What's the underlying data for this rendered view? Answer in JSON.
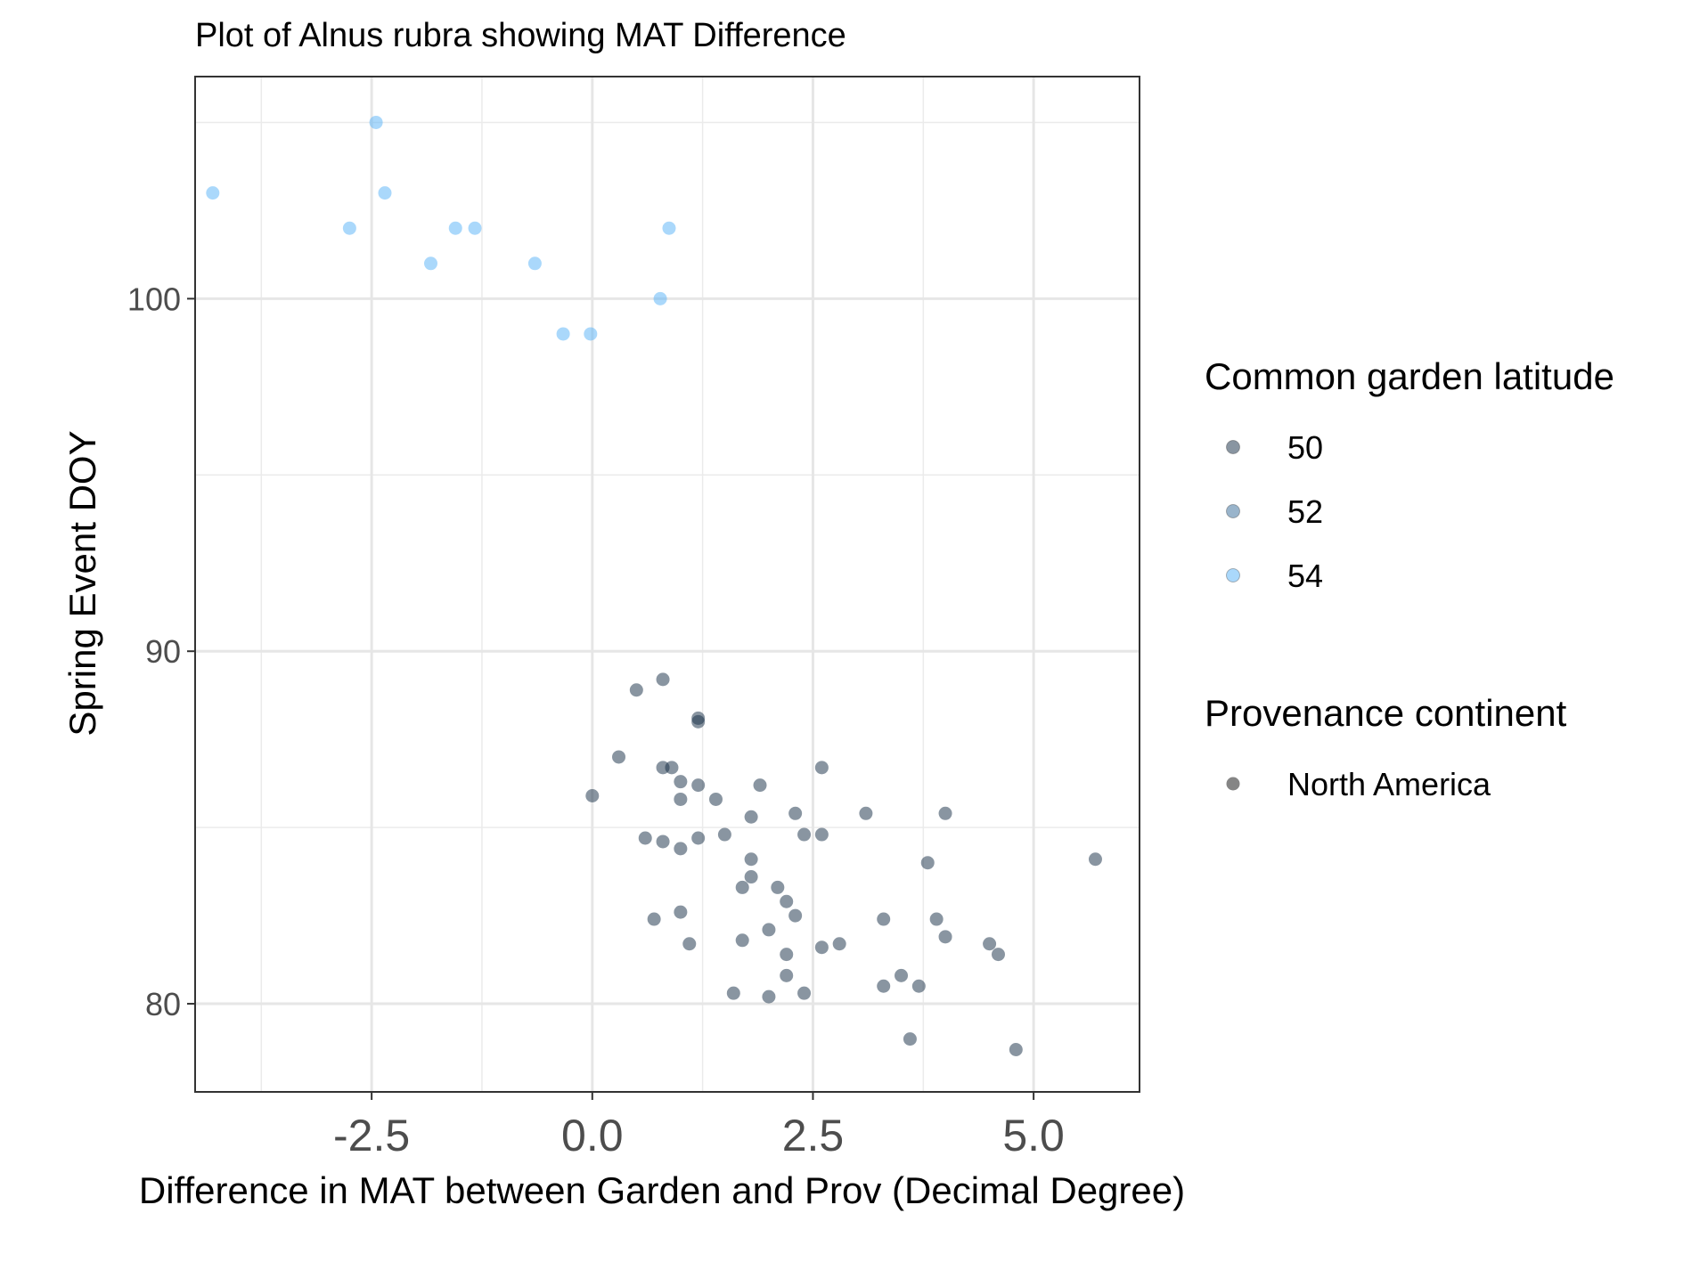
{
  "chart_data": {
    "type": "scatter",
    "title": "Plot of Alnus rubra showing MAT Difference",
    "xlabel": "Difference in MAT between Garden and Prov (Decimal Degree)",
    "ylabel": "Spring Event DOY",
    "xlim": [
      -4.5,
      6.2
    ],
    "ylim": [
      77.5,
      106.3
    ],
    "x_ticks": [
      -2.5,
      0.0,
      2.5,
      5.0
    ],
    "x_tick_labels": [
      "-2.5",
      "0.0",
      "2.5",
      "5.0"
    ],
    "y_ticks": [
      80,
      90,
      100
    ],
    "y_tick_labels": [
      "80",
      "90",
      "100"
    ],
    "grid": true,
    "legend_position": "right",
    "legend": {
      "color_title": "Common garden latitude",
      "color_entries": [
        {
          "label": "50",
          "color": "#132b43"
        },
        {
          "label": "52",
          "color": "#336a98"
        },
        {
          "label": "54",
          "color": "#56b1f7"
        }
      ],
      "shape_title": "Provenance continent",
      "shape_entries": [
        {
          "label": "North America",
          "color": "#333333"
        }
      ]
    },
    "series": [
      {
        "latitude": 54,
        "color": "#56b1f7",
        "points": [
          {
            "x": -4.3,
            "y": 103
          },
          {
            "x": -2.45,
            "y": 105
          },
          {
            "x": -2.35,
            "y": 103
          },
          {
            "x": -2.75,
            "y": 102
          },
          {
            "x": -1.55,
            "y": 102
          },
          {
            "x": -1.33,
            "y": 102
          },
          {
            "x": -1.83,
            "y": 101
          },
          {
            "x": -0.65,
            "y": 101
          },
          {
            "x": 0.87,
            "y": 102
          },
          {
            "x": 0.77,
            "y": 100
          },
          {
            "x": -0.33,
            "y": 99
          },
          {
            "x": -0.02,
            "y": 99
          }
        ]
      },
      {
        "latitude": 50,
        "color": "#132b43",
        "points": [
          {
            "x": 0.8,
            "y": 89.2
          },
          {
            "x": 0.5,
            "y": 88.9
          },
          {
            "x": 1.2,
            "y": 88.1
          },
          {
            "x": 1.2,
            "y": 88.0
          },
          {
            "x": 0.3,
            "y": 87.0
          },
          {
            "x": 0.8,
            "y": 86.7
          },
          {
            "x": 0.9,
            "y": 86.7
          },
          {
            "x": 2.6,
            "y": 86.7
          },
          {
            "x": 1.0,
            "y": 86.3
          },
          {
            "x": 1.2,
            "y": 86.2
          },
          {
            "x": 1.9,
            "y": 86.2
          },
          {
            "x": 0.0,
            "y": 85.9
          },
          {
            "x": 1.0,
            "y": 85.8
          },
          {
            "x": 1.4,
            "y": 85.8
          },
          {
            "x": 1.8,
            "y": 85.3
          },
          {
            "x": 2.3,
            "y": 85.4
          },
          {
            "x": 3.1,
            "y": 85.4
          },
          {
            "x": 4.0,
            "y": 85.4
          },
          {
            "x": 0.6,
            "y": 84.7
          },
          {
            "x": 0.8,
            "y": 84.6
          },
          {
            "x": 1.0,
            "y": 84.4
          },
          {
            "x": 1.2,
            "y": 84.7
          },
          {
            "x": 1.5,
            "y": 84.8
          },
          {
            "x": 2.4,
            "y": 84.8
          },
          {
            "x": 2.6,
            "y": 84.8
          },
          {
            "x": 1.8,
            "y": 84.1
          },
          {
            "x": 3.8,
            "y": 84.0
          },
          {
            "x": 5.7,
            "y": 84.1
          },
          {
            "x": 1.8,
            "y": 83.6
          },
          {
            "x": 1.7,
            "y": 83.3
          },
          {
            "x": 2.1,
            "y": 83.3
          },
          {
            "x": 2.2,
            "y": 82.9
          },
          {
            "x": 1.0,
            "y": 82.6
          },
          {
            "x": 0.7,
            "y": 82.4
          },
          {
            "x": 2.3,
            "y": 82.5
          },
          {
            "x": 3.3,
            "y": 82.4
          },
          {
            "x": 3.9,
            "y": 82.4
          },
          {
            "x": 2.0,
            "y": 82.1
          },
          {
            "x": 1.1,
            "y": 81.7
          },
          {
            "x": 1.7,
            "y": 81.8
          },
          {
            "x": 4.0,
            "y": 81.9
          },
          {
            "x": 2.6,
            "y": 81.6
          },
          {
            "x": 2.8,
            "y": 81.7
          },
          {
            "x": 4.5,
            "y": 81.7
          },
          {
            "x": 4.6,
            "y": 81.4
          },
          {
            "x": 2.2,
            "y": 81.4
          },
          {
            "x": 2.2,
            "y": 80.8
          },
          {
            "x": 3.5,
            "y": 80.8
          },
          {
            "x": 3.3,
            "y": 80.5
          },
          {
            "x": 3.7,
            "y": 80.5
          },
          {
            "x": 1.6,
            "y": 80.3
          },
          {
            "x": 2.0,
            "y": 80.2
          },
          {
            "x": 2.4,
            "y": 80.3
          },
          {
            "x": 3.6,
            "y": 79.0
          },
          {
            "x": 4.8,
            "y": 78.7
          }
        ]
      }
    ]
  }
}
